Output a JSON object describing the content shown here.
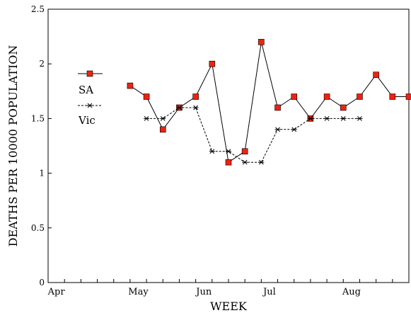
{
  "chart_data": {
    "type": "line",
    "title": "",
    "xlabel": "WEEK",
    "ylabel": "DEATHS PER 10000 POPULATION",
    "ylim": [
      0,
      2.5
    ],
    "xlim": [
      0,
      22
    ],
    "x_ticks": [
      0,
      1,
      2,
      3,
      4,
      5,
      6,
      7,
      8,
      9,
      10,
      11,
      12,
      13,
      14,
      15,
      16,
      17,
      18,
      19,
      20,
      21,
      22
    ],
    "x_tick_labels": [
      {
        "x": 0.5,
        "label": "Apr"
      },
      {
        "x": 5.5,
        "label": "May"
      },
      {
        "x": 9.5,
        "label": "Jun"
      },
      {
        "x": 13.5,
        "label": "Jul"
      },
      {
        "x": 18.5,
        "label": "Aug"
      }
    ],
    "y_ticks": [
      0,
      0.5,
      1,
      1.5,
      2,
      2.5
    ],
    "y_tick_labels": [
      "0",
      "0.5",
      "1",
      "1.5",
      "2",
      "2.5"
    ],
    "grid": false,
    "legend_position": "top-left",
    "series": [
      {
        "name": "SA",
        "marker": "square",
        "line_style": "solid",
        "color": "#000000",
        "marker_color": "#ee2211",
        "x": [
          5,
          6,
          7,
          8,
          9,
          10,
          11,
          12,
          13,
          14,
          15,
          16,
          17,
          18,
          19,
          20,
          21,
          22
        ],
        "y": [
          1.8,
          1.7,
          1.4,
          1.6,
          1.7,
          2.0,
          1.1,
          1.2,
          2.2,
          1.6,
          1.7,
          1.5,
          1.7,
          1.6,
          1.7,
          1.9,
          1.7,
          1.7
        ]
      },
      {
        "name": "Vic",
        "marker": "asterisk",
        "line_style": "dashed",
        "color": "#000000",
        "x": [
          6,
          7,
          8,
          9,
          10,
          11,
          12,
          13,
          14,
          15,
          16,
          17,
          18,
          19
        ],
        "y": [
          1.5,
          1.5,
          1.6,
          1.6,
          1.2,
          1.2,
          1.1,
          1.1,
          1.4,
          1.4,
          1.5,
          1.5,
          1.5,
          1.5
        ]
      }
    ]
  }
}
